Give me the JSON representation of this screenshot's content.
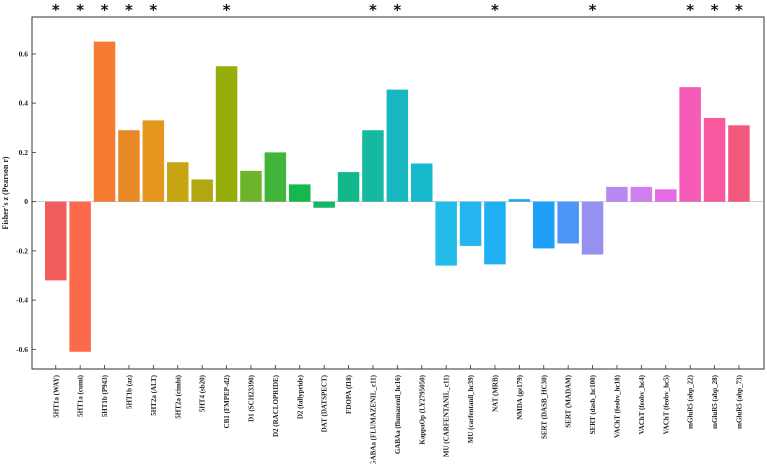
{
  "chart_data": {
    "type": "bar",
    "title": "",
    "xlabel": "",
    "ylabel": "Fisher's z (Pearson r)",
    "ylim": [
      -0.68,
      0.75
    ],
    "yticks": [
      -0.6,
      -0.4,
      -0.2,
      0,
      0.2,
      0.4,
      0.6
    ],
    "ytick_labels": [
      "-0.6",
      "-0.4",
      "-0.2",
      "0",
      "0.2",
      "0.4",
      "0.6"
    ],
    "grid": false,
    "legend": "none",
    "significance_marker": "*",
    "categories": [
      "5HT1a (WAY)",
      "5HT1a (cumi)",
      "5HT1b (P943)",
      "5HT1b (az)",
      "5HT2a (ALT)",
      "5HT2a (cimbi)",
      "5HT4 (sb20)",
      "CB1 (FMPEP-d2)",
      "D1 (SCH23390)",
      "D2 (RACLOPRIDE)",
      "D2 (fallypride)",
      "DAT (DATSPECT)",
      "FDOPA (f18)",
      "GABAa (FLUMAZENIL_c11)",
      "GABAa (flumazenil_hc16)",
      "KappaOp (LY2795050)",
      "MU (CARFENTANIL_c11)",
      "MU (carfentanil_hc39)",
      "NAT (MRB)",
      "NMDA (ge179)",
      "SERT (DASB_HC30)",
      "SERT (MADAM)",
      "SERT (dasb_hc100)",
      "VAChT (feobv_hc18)",
      "VAChT (feobv_hc4)",
      "VAChT (feobv_hc5)",
      "mGluR5 (abp_22)",
      "mGluR5 (abp_28)",
      "mGluR5 (abp_73)"
    ],
    "values": [
      -0.32,
      -0.61,
      0.65,
      0.29,
      0.33,
      0.16,
      0.09,
      0.55,
      0.125,
      0.2,
      0.07,
      -0.025,
      0.12,
      0.29,
      0.455,
      0.155,
      -0.26,
      -0.18,
      -0.255,
      0.01,
      -0.19,
      -0.17,
      -0.215,
      0.06,
      0.06,
      0.05,
      0.465,
      0.34,
      0.31
    ],
    "significant": [
      true,
      true,
      true,
      true,
      true,
      false,
      false,
      true,
      false,
      false,
      false,
      false,
      false,
      true,
      true,
      false,
      false,
      false,
      true,
      false,
      false,
      false,
      true,
      false,
      false,
      false,
      true,
      true,
      true
    ],
    "colors": [
      "#f25c5c",
      "#fb6a4a",
      "#f47b30",
      "#e88926",
      "#e5961c",
      "#c7a411",
      "#b2a712",
      "#96ad0a",
      "#6db42b",
      "#41b53a",
      "#14b84d",
      "#15b56b",
      "#12b88b",
      "#16b8a0",
      "#16b7bf",
      "#17b7cc",
      "#23bce8",
      "#24b5ef",
      "#1fb0f4",
      "#1aa8f3",
      "#1d9ff7",
      "#4a95f6",
      "#9690f0",
      "#b989f2",
      "#d07ef0",
      "#e56ce6",
      "#f75bb8",
      "#f8589d",
      "#f2577e"
    ]
  }
}
